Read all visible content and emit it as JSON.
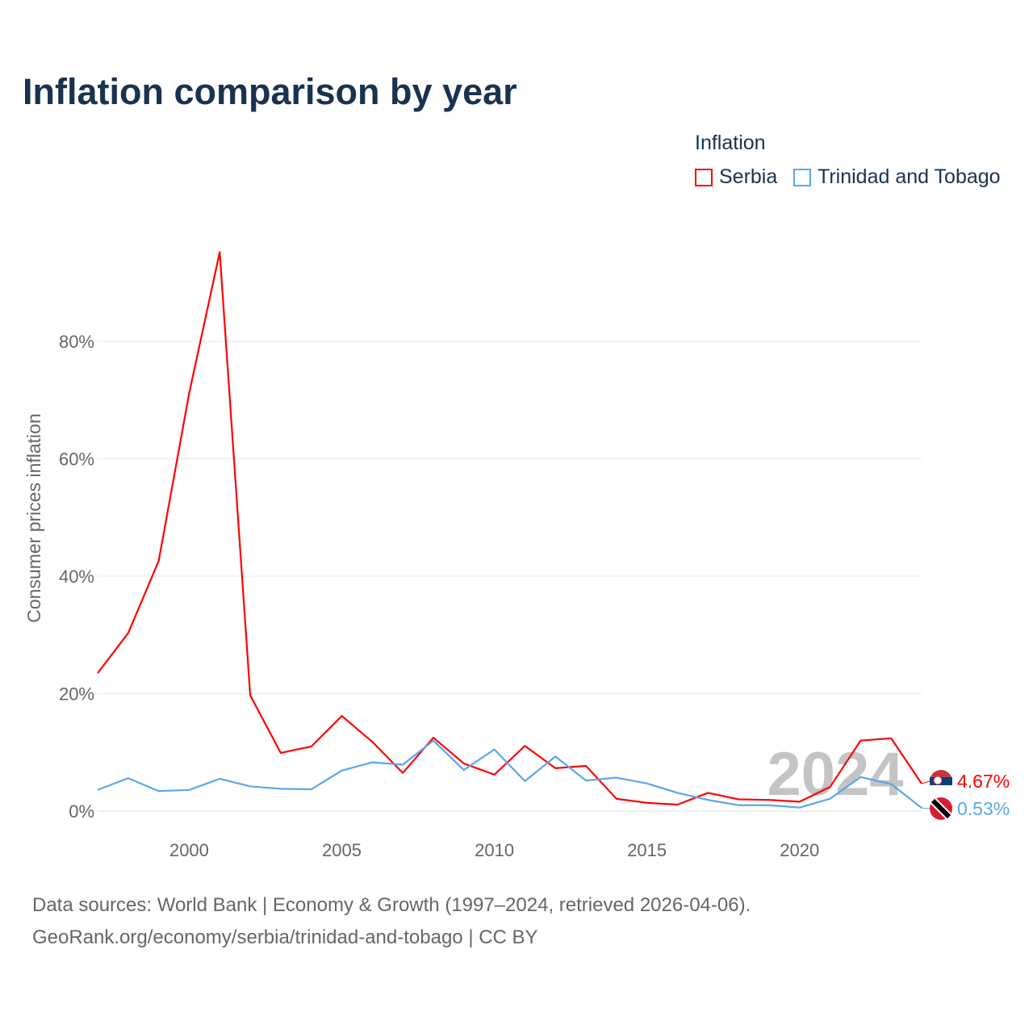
{
  "chart_data": {
    "type": "line",
    "title": "Inflation comparison by year",
    "legend_title": "Inflation",
    "legend_position": "top-right",
    "xlabel": "",
    "ylabel": "Consumer prices inflation",
    "xlim": [
      1997,
      2024
    ],
    "ylim": [
      0,
      80
    ],
    "x_ticks": [
      "2000",
      "2005",
      "2010",
      "2015",
      "2020"
    ],
    "y_ticks": [
      "0%",
      "20%",
      "40%",
      "60%",
      "80%"
    ],
    "grid": true,
    "watermark_year": "2024",
    "x": [
      1997,
      1998,
      1999,
      2000,
      2001,
      2002,
      2003,
      2004,
      2005,
      2006,
      2007,
      2008,
      2009,
      2010,
      2011,
      2012,
      2013,
      2014,
      2015,
      2016,
      2017,
      2018,
      2019,
      2020,
      2021,
      2022,
      2023,
      2024
    ],
    "series": [
      {
        "name": "Serbia",
        "color": "#ff0000",
        "end_label": "4.67%",
        "values": [
          23.5,
          30.3,
          42.6,
          71.2,
          95.2,
          19.7,
          9.9,
          11.0,
          16.2,
          11.8,
          6.5,
          12.5,
          8.1,
          6.2,
          11.1,
          7.3,
          7.7,
          2.1,
          1.4,
          1.1,
          3.1,
          2.0,
          1.9,
          1.6,
          4.1,
          12.0,
          12.4,
          4.67
        ]
      },
      {
        "name": "Trinidad and Tobago",
        "color": "#5aa7ea",
        "end_label": "0.53%",
        "values": [
          3.6,
          5.6,
          3.4,
          3.6,
          5.5,
          4.2,
          3.8,
          3.7,
          6.9,
          8.3,
          7.9,
          12.0,
          7.0,
          10.5,
          5.1,
          9.3,
          5.2,
          5.7,
          4.7,
          3.1,
          1.9,
          1.0,
          1.0,
          0.6,
          2.1,
          5.8,
          4.6,
          0.53
        ]
      }
    ]
  },
  "source": {
    "line1": "Data sources: World Bank | Economy & Growth (1997–2024, retrieved 2026-04-06).",
    "line2": "GeoRank.org/economy/serbia/trinidad-and-tobago | CC BY"
  }
}
